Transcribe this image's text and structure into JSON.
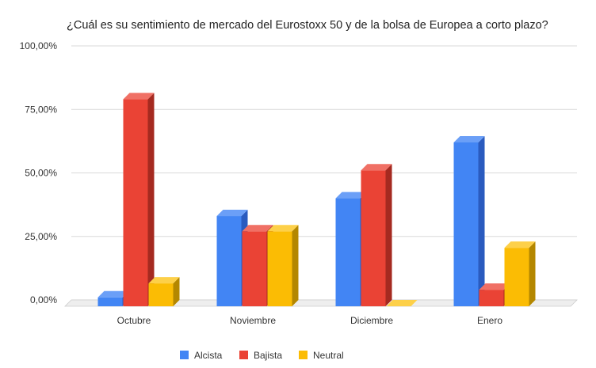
{
  "chart_data": {
    "type": "bar",
    "title": "¿Cuál es su sentimiento de mercado del Eurostoxx 50 y de la bolsa de Europea a corto plazo?",
    "categories": [
      "Octubre",
      "Noviembre",
      "Diciembre",
      "Enero"
    ],
    "series": [
      {
        "name": "Alcista",
        "values": [
          3.5,
          35.5,
          42.5,
          64.5
        ],
        "color": "#4285f4",
        "side_color": "#2a5bbf",
        "top_color": "#6b9ff7"
      },
      {
        "name": "Bajista",
        "values": [
          81.5,
          29.5,
          53.5,
          6.5
        ],
        "color": "#ea4335",
        "side_color": "#a52a20",
        "top_color": "#f07065"
      },
      {
        "name": "Neutral",
        "values": [
          9.0,
          29.5,
          0.0,
          23.0
        ],
        "color": "#fbbc04",
        "side_color": "#b48700",
        "top_color": "#fdd049"
      }
    ],
    "y_ticks": [
      "0,00%",
      "25,00%",
      "50,00%",
      "75,00%",
      "100,00%"
    ],
    "ylim": [
      0,
      100
    ],
    "grid": true,
    "legend_position": "bottom"
  }
}
